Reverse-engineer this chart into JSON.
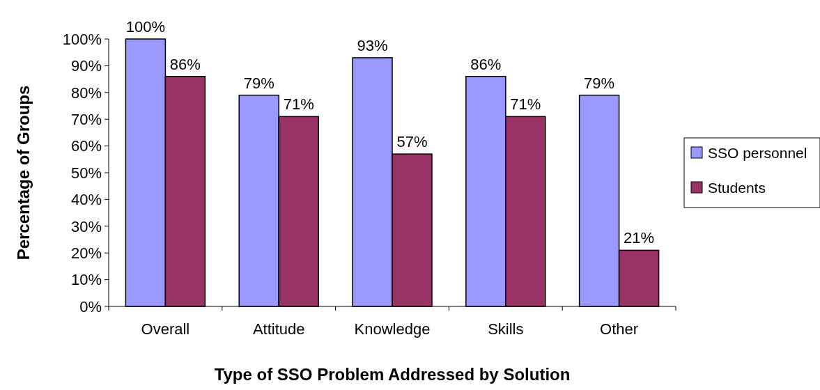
{
  "chart_data": {
    "type": "bar",
    "xlabel": "Type of SSO Problem Addressed by Solution",
    "ylabel": "Percentage of Groups",
    "categories": [
      "Overall",
      "Attitude",
      "Knowledge",
      "Skills",
      "Other"
    ],
    "series": [
      {
        "name": "SSO personnel",
        "color": "#9999ff",
        "values": [
          100,
          79,
          93,
          86,
          79
        ],
        "value_labels": [
          "100%",
          "79%",
          "93%",
          "86%",
          "79%"
        ]
      },
      {
        "name": "Students",
        "color": "#993366",
        "values": [
          86,
          71,
          57,
          71,
          21
        ],
        "value_labels": [
          "86%",
          "71%",
          "57%",
          "71%",
          "21%"
        ]
      }
    ],
    "ylim": [
      0,
      100
    ],
    "yticks": [
      {
        "value": 0,
        "label": "0%"
      },
      {
        "value": 10,
        "label": "10%"
      },
      {
        "value": 20,
        "label": "20%"
      },
      {
        "value": 30,
        "label": "30%"
      },
      {
        "value": 40,
        "label": "40%"
      },
      {
        "value": 50,
        "label": "50%"
      },
      {
        "value": 60,
        "label": "60%"
      },
      {
        "value": 70,
        "label": "70%"
      },
      {
        "value": 80,
        "label": "80%"
      },
      {
        "value": 90,
        "label": "90%"
      },
      {
        "value": 100,
        "label": "100%"
      }
    ],
    "legend": "right"
  }
}
